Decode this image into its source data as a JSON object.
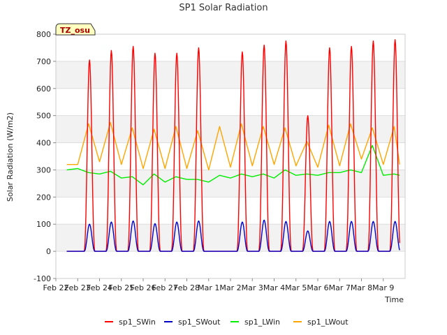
{
  "chart_data": {
    "type": "line",
    "title": "SP1 Solar Radiation",
    "xlabel": "Time",
    "ylabel": "Solar Radiation (W/m2)",
    "ylim": [
      -100,
      800
    ],
    "yticks": [
      -100,
      0,
      100,
      200,
      300,
      400,
      500,
      600,
      700,
      800
    ],
    "xlim": [
      "2024-02-22",
      "2024-03-09"
    ],
    "xticks": [
      "Feb 22",
      "Feb 23",
      "Feb 24",
      "Feb 25",
      "Feb 26",
      "Feb 27",
      "Feb 28",
      "Mar 1",
      "Mar 2",
      "Mar 3",
      "Mar 4",
      "Mar 5",
      "Mar 6",
      "Mar 7",
      "Mar 8",
      "Mar 9"
    ],
    "grid": "horizontal bands",
    "legend_position": "bottom",
    "annotation": "TZ_osu",
    "data_start": "2024-02-22 12:00",
    "data_end": "2024-03-08 18:00",
    "series": [
      {
        "name": "sp1_SWin",
        "color": "#ff0000",
        "peak_time": "13:00",
        "daily_peaks": [
          705,
          740,
          755,
          730,
          730,
          750,
          735,
          760,
          775,
          500,
          750,
          755,
          775,
          780
        ],
        "dates": [
          "2024-02-23",
          "2024-02-24",
          "2024-02-25",
          "2024-02-26",
          "2024-02-27",
          "2024-02-28",
          "2024-03-01",
          "2024-03-02",
          "2024-03-03",
          "2024-03-04",
          "2024-03-05",
          "2024-03-06",
          "2024-03-07",
          "2024-03-08"
        ],
        "night_value": 0
      },
      {
        "name": "sp1_SWout",
        "color": "#0000cc",
        "peak_time": "13:00",
        "daily_peaks": [
          100,
          108,
          112,
          102,
          108,
          112,
          108,
          115,
          110,
          75,
          110,
          110,
          110,
          110
        ],
        "dates": [
          "2024-02-23",
          "2024-02-24",
          "2024-02-25",
          "2024-02-26",
          "2024-02-27",
          "2024-02-28",
          "2024-03-01",
          "2024-03-02",
          "2024-03-03",
          "2024-03-04",
          "2024-03-05",
          "2024-03-06",
          "2024-03-07",
          "2024-03-08"
        ],
        "night_value": 0
      },
      {
        "name": "sp1_LWin",
        "color": "#00ee00",
        "x": [
          "2024-02-22 12:00",
          "2024-02-23 00:00",
          "2024-02-23 12:00",
          "2024-02-24 00:00",
          "2024-02-24 12:00",
          "2024-02-25 00:00",
          "2024-02-25 12:00",
          "2024-02-26 00:00",
          "2024-02-26 12:00",
          "2024-02-27 00:00",
          "2024-02-27 12:00",
          "2024-02-28 00:00",
          "2024-02-28 12:00",
          "2024-02-29 00:00",
          "2024-02-29 12:00",
          "2024-03-01 00:00",
          "2024-03-01 12:00",
          "2024-03-02 00:00",
          "2024-03-02 12:00",
          "2024-03-03 00:00",
          "2024-03-03 12:00",
          "2024-03-04 00:00",
          "2024-03-04 12:00",
          "2024-03-05 00:00",
          "2024-03-05 12:00",
          "2024-03-06 00:00",
          "2024-03-06 12:00",
          "2024-03-07 00:00",
          "2024-03-07 12:00",
          "2024-03-08 00:00",
          "2024-03-08 12:00",
          "2024-03-08 18:00"
        ],
        "y": [
          300,
          305,
          290,
          285,
          295,
          270,
          275,
          245,
          285,
          255,
          275,
          265,
          265,
          255,
          280,
          270,
          285,
          275,
          285,
          270,
          300,
          280,
          285,
          280,
          290,
          290,
          300,
          290,
          390,
          280,
          285,
          280
        ]
      },
      {
        "name": "sp1_LWout",
        "color": "#ffa500",
        "x": [
          "2024-02-22 12:00",
          "2024-02-23 00:00",
          "2024-02-23 12:00",
          "2024-02-24 00:00",
          "2024-02-24 12:00",
          "2024-02-25 00:00",
          "2024-02-25 12:00",
          "2024-02-26 00:00",
          "2024-02-26 12:00",
          "2024-02-27 00:00",
          "2024-02-27 12:00",
          "2024-02-28 00:00",
          "2024-02-28 12:00",
          "2024-02-29 00:00",
          "2024-02-29 12:00",
          "2024-03-01 00:00",
          "2024-03-01 12:00",
          "2024-03-02 00:00",
          "2024-03-02 12:00",
          "2024-03-03 00:00",
          "2024-03-03 12:00",
          "2024-03-04 00:00",
          "2024-03-04 12:00",
          "2024-03-05 00:00",
          "2024-03-05 12:00",
          "2024-03-06 00:00",
          "2024-03-06 12:00",
          "2024-03-07 00:00",
          "2024-03-07 12:00",
          "2024-03-08 00:00",
          "2024-03-08 12:00",
          "2024-03-08 18:00"
        ],
        "y": [
          320,
          320,
          470,
          330,
          475,
          320,
          455,
          305,
          450,
          305,
          460,
          305,
          445,
          300,
          460,
          310,
          470,
          315,
          460,
          320,
          455,
          315,
          405,
          310,
          465,
          315,
          470,
          340,
          455,
          320,
          460,
          320
        ]
      }
    ]
  }
}
